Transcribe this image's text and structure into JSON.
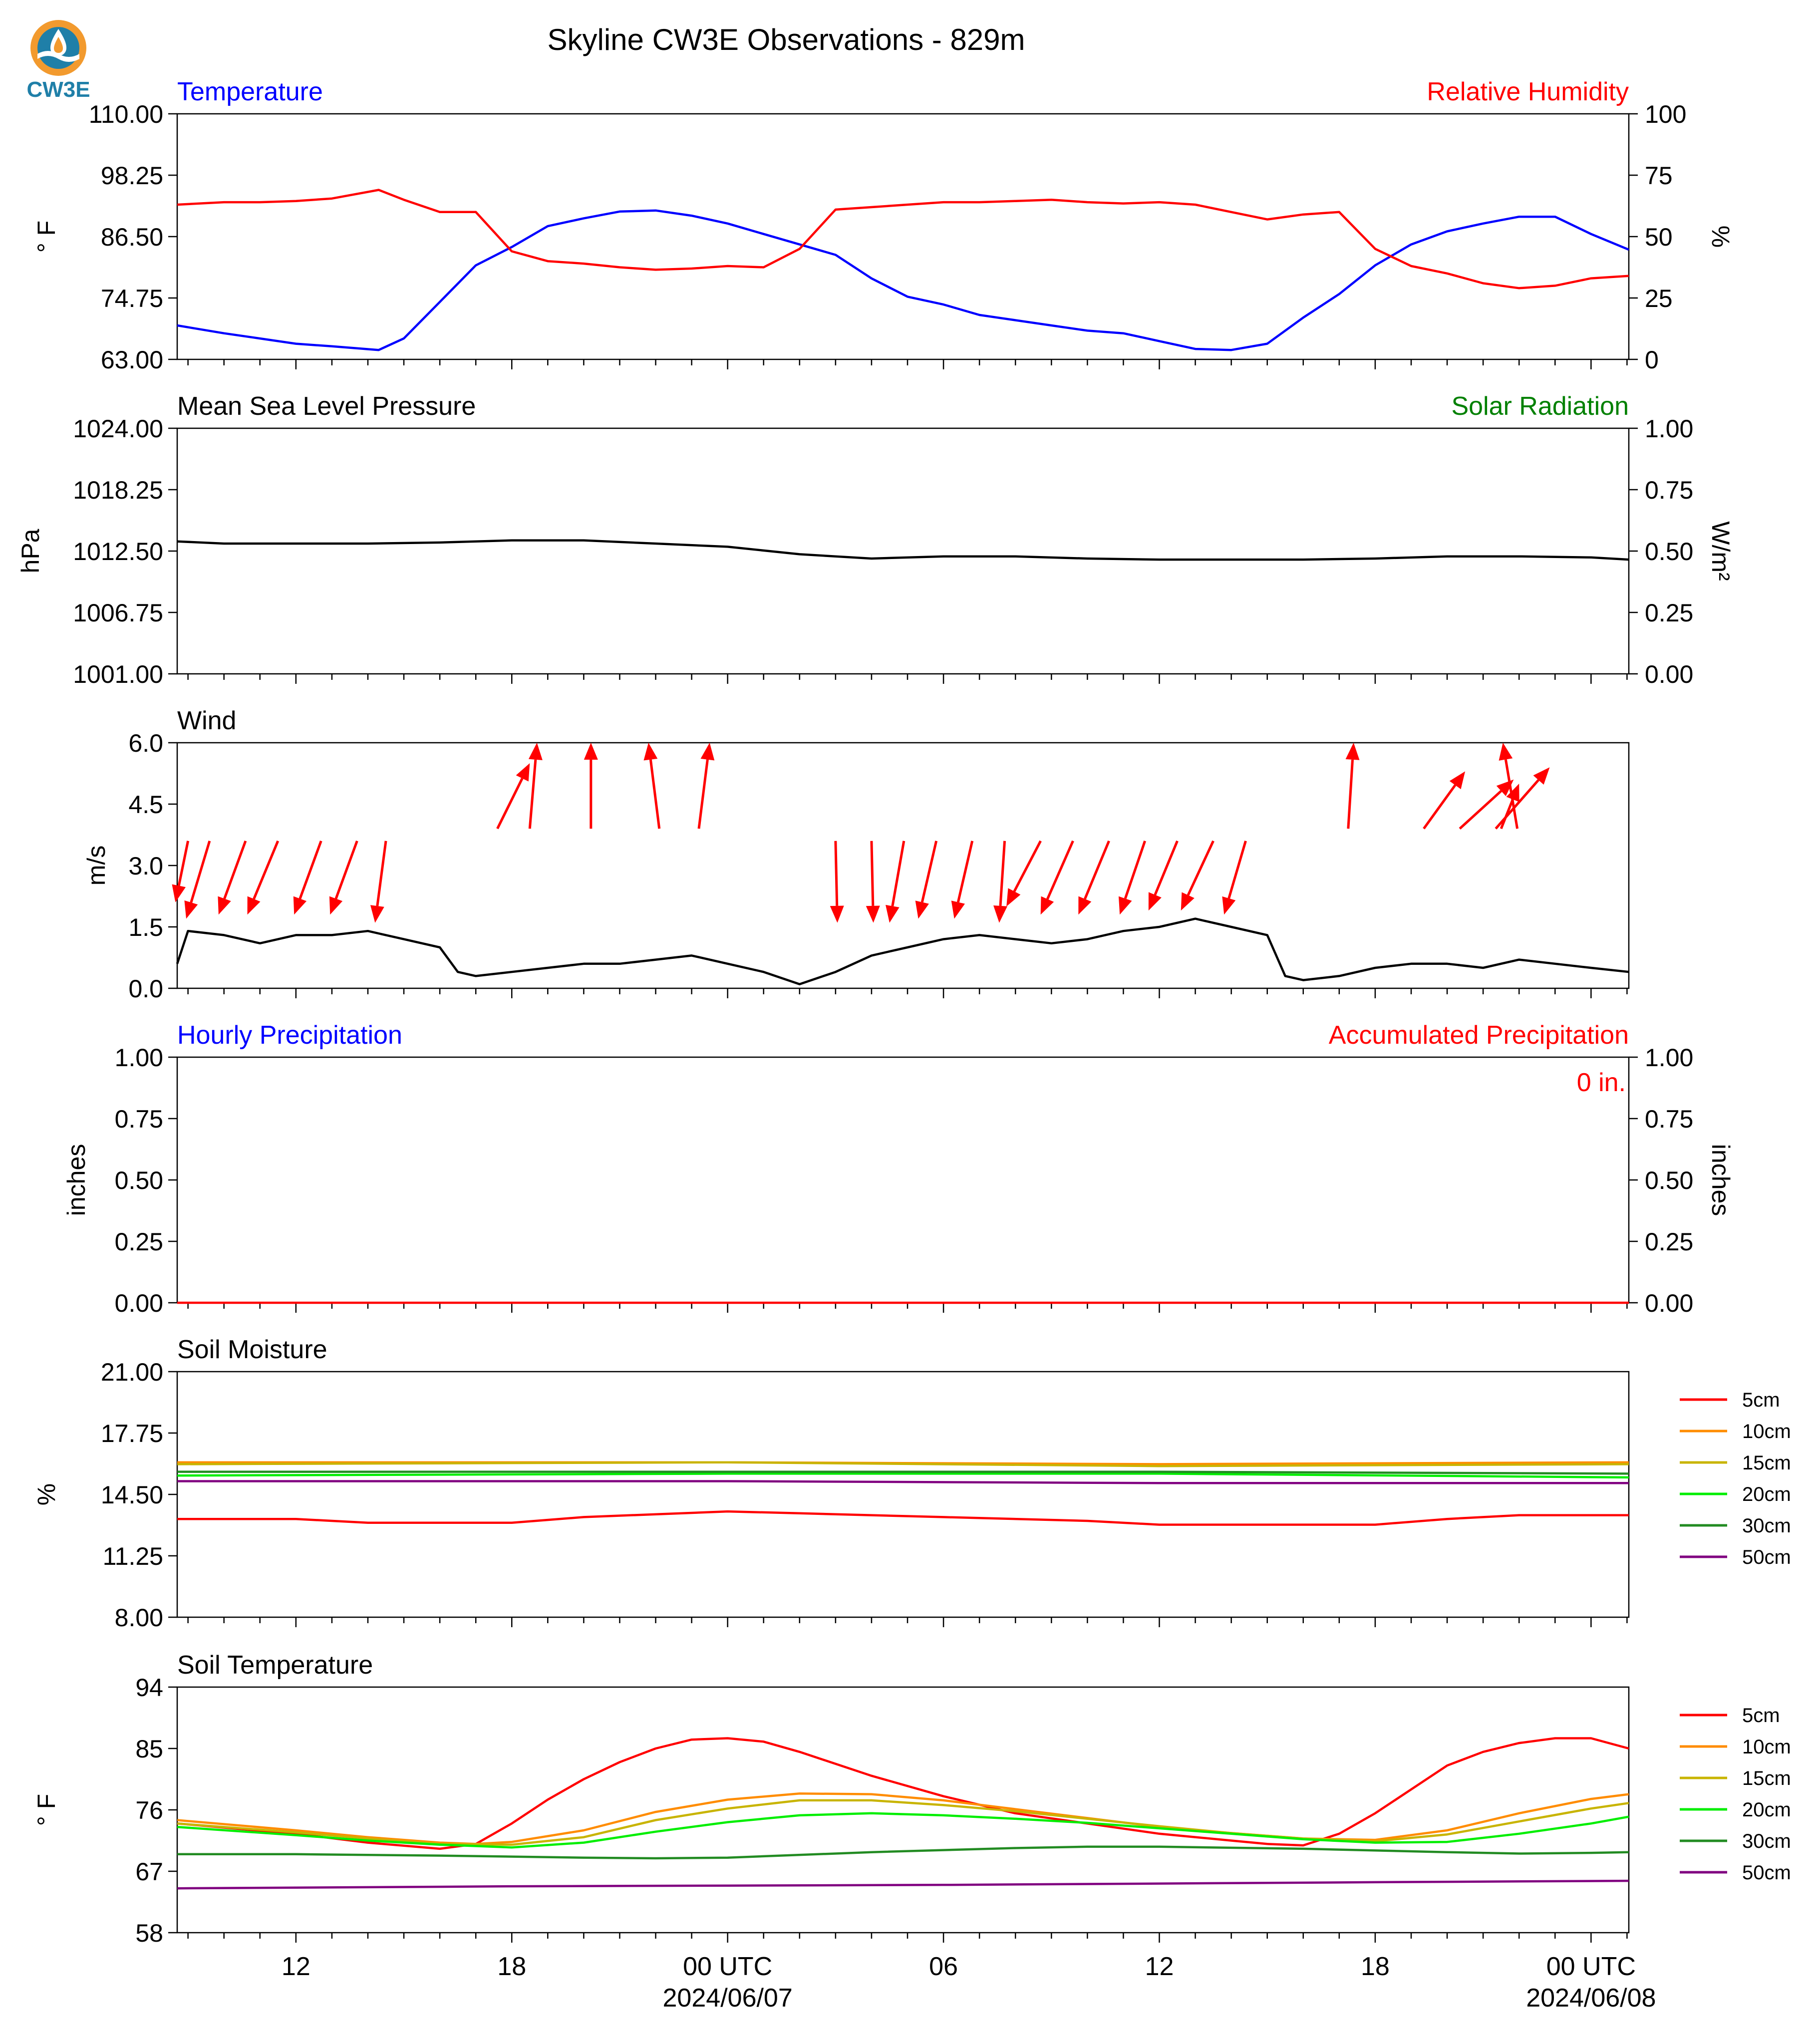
{
  "title": "Skyline CW3E Observations - 829m",
  "logo": {
    "text": "CW3E",
    "icon": "cw3e-logo-icon",
    "colors": {
      "orange": "#f29a2e",
      "blue": "#1f7fa8"
    }
  },
  "colors": {
    "blue": "#0000ff",
    "red": "#ff0000",
    "green": "#008000",
    "black": "#000000"
  },
  "x_axis": {
    "ticks": [
      {
        "label": "12",
        "sub": "",
        "x": 12
      },
      {
        "label": "18",
        "sub": "",
        "x": 18
      },
      {
        "label": "00 UTC",
        "sub": "2024/06/07",
        "x": 24
      },
      {
        "label": "06",
        "sub": "",
        "x": 30
      },
      {
        "label": "12",
        "sub": "",
        "x": 36
      },
      {
        "label": "18",
        "sub": "",
        "x": 42
      },
      {
        "label": "00 UTC",
        "sub": "2024/06/08",
        "x": 48
      }
    ],
    "range_hours": [
      8.7,
      49.05
    ]
  },
  "chart_data": [
    {
      "type": "line",
      "left_title": "Temperature",
      "right_title": "Relative Humidity",
      "ylabel": "° F",
      "y2label": "%",
      "yticks": [
        "63.00",
        "74.75",
        "86.50",
        "98.25",
        "110.00"
      ],
      "y2ticks": [
        "0",
        "25",
        "50",
        "75",
        "100"
      ],
      "ylim": [
        63,
        110
      ],
      "y2lim": [
        0,
        100
      ],
      "series": [
        {
          "axis": "left",
          "color": "#0000ff",
          "x": [
            8.7,
            10,
            11,
            12,
            13,
            14.3,
            15,
            16,
            17,
            18,
            19,
            20,
            21,
            22,
            23,
            24,
            25,
            26,
            27,
            28,
            29,
            30,
            31,
            32,
            33,
            34,
            35,
            36,
            37,
            38,
            39,
            40,
            41,
            42,
            43,
            44,
            45,
            46,
            47,
            48,
            49.05
          ],
          "values": [
            69.5,
            68,
            67,
            66,
            65.5,
            64.8,
            67,
            74,
            81,
            84.5,
            88.5,
            90,
            91.3,
            91.5,
            90.5,
            89,
            87,
            85,
            83,
            78.5,
            75,
            73.5,
            71.5,
            70.5,
            69.5,
            68.5,
            68,
            66.5,
            65,
            64.8,
            66,
            71,
            75.5,
            81,
            85,
            87.5,
            89,
            90.3,
            90.3,
            87,
            84
          ]
        },
        {
          "axis": "right",
          "color": "#ff0000",
          "x": [
            8.7,
            10,
            11,
            12,
            13,
            14.3,
            15,
            16,
            17,
            18,
            19,
            20,
            21,
            22,
            23,
            24,
            25,
            26,
            27,
            28,
            29,
            30,
            31,
            32,
            33,
            34,
            35,
            36,
            37,
            38,
            39,
            40,
            41,
            42,
            43,
            44,
            45,
            46,
            47,
            48,
            49.05
          ],
          "values": [
            63,
            64,
            64,
            64.5,
            65.5,
            69,
            65,
            60,
            60,
            44,
            40,
            39,
            37.5,
            36.5,
            37,
            38,
            37.5,
            45,
            61,
            62,
            63,
            64,
            64,
            64.5,
            65,
            64,
            63.5,
            64,
            63,
            60,
            57,
            59,
            60,
            45,
            38,
            35,
            31,
            29,
            30,
            33,
            34
          ]
        }
      ]
    },
    {
      "type": "line",
      "left_title": "Mean Sea Level Pressure",
      "right_title": "Solar Radiation",
      "ylabel": "hPa",
      "y2label": "W/m²",
      "yticks": [
        "1001.00",
        "1006.75",
        "1012.50",
        "1018.25",
        "1024.00"
      ],
      "y2ticks": [
        "0.00",
        "0.25",
        "0.50",
        "0.75",
        "1.00"
      ],
      "ylim": [
        1001,
        1024
      ],
      "y2lim": [
        0,
        1
      ],
      "series": [
        {
          "axis": "left",
          "color": "#000000",
          "x": [
            8.7,
            10,
            12,
            14,
            16,
            18,
            20,
            22,
            24,
            26,
            28,
            30,
            32,
            34,
            36,
            38,
            40,
            42,
            44,
            46,
            48,
            49.05
          ],
          "values": [
            1013.4,
            1013.2,
            1013.2,
            1013.2,
            1013.3,
            1013.5,
            1013.5,
            1013.2,
            1012.9,
            1012.2,
            1011.8,
            1012.0,
            1012.0,
            1011.8,
            1011.7,
            1011.7,
            1011.7,
            1011.8,
            1012.0,
            1012.0,
            1011.9,
            1011.7
          ]
        }
      ]
    },
    {
      "type": "line",
      "left_title": "Wind",
      "ylabel": "m/s",
      "yticks": [
        "0.0",
        "1.5",
        "3.0",
        "4.5",
        "6.0"
      ],
      "ylim": [
        0,
        6
      ],
      "series": [
        {
          "axis": "left",
          "color": "#000000",
          "x": [
            8.7,
            9,
            10,
            11,
            12,
            13,
            14,
            15,
            16,
            16.5,
            17,
            18,
            19,
            20,
            21,
            22,
            23,
            24,
            25,
            26,
            27,
            28,
            29,
            30,
            31,
            32,
            33,
            34,
            35,
            36,
            37,
            38,
            39,
            39.5,
            40,
            41,
            42,
            43,
            44,
            45,
            46,
            47,
            48,
            49.05
          ],
          "values": [
            0.6,
            1.4,
            1.3,
            1.1,
            1.3,
            1.3,
            1.4,
            1.2,
            1.0,
            0.4,
            0.3,
            0.4,
            0.5,
            0.6,
            0.6,
            0.7,
            0.8,
            0.6,
            0.4,
            0.1,
            0.4,
            0.8,
            1.0,
            1.2,
            1.3,
            1.2,
            1.1,
            1.2,
            1.4,
            1.5,
            1.7,
            1.5,
            1.3,
            0.3,
            0.2,
            0.3,
            0.5,
            0.6,
            0.6,
            0.5,
            0.7,
            0.6,
            0.5,
            0.4
          ]
        }
      ],
      "wind_arrows": [
        {
          "x": 9.0,
          "x_tip": 8.65,
          "y": 3.6,
          "y_tip": 2.1
        },
        {
          "x": 9.6,
          "x_tip": 8.95,
          "y": 3.6,
          "y_tip": 1.7
        },
        {
          "x": 10.6,
          "x_tip": 9.85,
          "y": 3.6,
          "y_tip": 1.8
        },
        {
          "x": 11.5,
          "x_tip": 10.65,
          "y": 3.6,
          "y_tip": 1.8
        },
        {
          "x": 12.7,
          "x_tip": 11.95,
          "y": 3.6,
          "y_tip": 1.8
        },
        {
          "x": 13.7,
          "x_tip": 12.95,
          "y": 3.6,
          "y_tip": 1.8
        },
        {
          "x": 14.5,
          "x_tip": 14.2,
          "y": 3.6,
          "y_tip": 1.6
        },
        {
          "x": 17.6,
          "x_tip": 18.5,
          "y": 3.9,
          "y_tip": 5.5
        },
        {
          "x": 18.5,
          "x_tip": 18.7,
          "y": 3.9,
          "y_tip": 6.0
        },
        {
          "x": 20.2,
          "x_tip": 20.2,
          "y": 3.9,
          "y_tip": 6.0
        },
        {
          "x": 22.1,
          "x_tip": 21.8,
          "y": 3.9,
          "y_tip": 6.0
        },
        {
          "x": 23.2,
          "x_tip": 23.5,
          "y": 3.9,
          "y_tip": 6.0
        },
        {
          "x": 27.0,
          "x_tip": 27.05,
          "y": 3.6,
          "y_tip": 1.6
        },
        {
          "x": 28.0,
          "x_tip": 28.05,
          "y": 3.6,
          "y_tip": 1.6
        },
        {
          "x": 28.9,
          "x_tip": 28.5,
          "y": 3.6,
          "y_tip": 1.6
        },
        {
          "x": 29.8,
          "x_tip": 29.3,
          "y": 3.6,
          "y_tip": 1.7
        },
        {
          "x": 30.8,
          "x_tip": 30.3,
          "y": 3.6,
          "y_tip": 1.7
        },
        {
          "x": 31.7,
          "x_tip": 31.55,
          "y": 3.6,
          "y_tip": 1.6
        },
        {
          "x": 32.7,
          "x_tip": 31.75,
          "y": 3.6,
          "y_tip": 2.0
        },
        {
          "x": 33.6,
          "x_tip": 32.7,
          "y": 3.6,
          "y_tip": 1.8
        },
        {
          "x": 34.6,
          "x_tip": 33.75,
          "y": 3.6,
          "y_tip": 1.8
        },
        {
          "x": 35.6,
          "x_tip": 34.9,
          "y": 3.6,
          "y_tip": 1.8
        },
        {
          "x": 36.5,
          "x_tip": 35.7,
          "y": 3.6,
          "y_tip": 1.9
        },
        {
          "x": 37.5,
          "x_tip": 36.6,
          "y": 3.6,
          "y_tip": 1.9
        },
        {
          "x": 38.4,
          "x_tip": 37.8,
          "y": 3.6,
          "y_tip": 1.8
        },
        {
          "x": 41.25,
          "x_tip": 41.4,
          "y": 3.9,
          "y_tip": 6.0
        },
        {
          "x": 43.35,
          "x_tip": 44.5,
          "y": 3.9,
          "y_tip": 5.3
        },
        {
          "x": 44.35,
          "x_tip": 45.85,
          "y": 3.9,
          "y_tip": 5.1
        },
        {
          "x": 45.35,
          "x_tip": 46.85,
          "y": 3.9,
          "y_tip": 5.4
        },
        {
          "x": 45.95,
          "x_tip": 45.55,
          "y": 3.9,
          "y_tip": 6.0
        },
        {
          "x": 45.5,
          "x_tip": 46.0,
          "y": 3.9,
          "y_tip": 5.0
        }
      ]
    },
    {
      "type": "line",
      "left_title": "Hourly Precipitation",
      "right_title": "Accumulated Precipitation",
      "ylabel": "inches",
      "y2label": "inches",
      "annotation": "0 in.",
      "yticks": [
        "0.00",
        "0.25",
        "0.50",
        "0.75",
        "1.00"
      ],
      "y2ticks": [
        "0.00",
        "0.25",
        "0.50",
        "0.75",
        "1.00"
      ],
      "ylim": [
        0,
        1
      ],
      "y2lim": [
        0,
        1
      ],
      "series": [
        {
          "axis": "right",
          "color": "#ff0000",
          "x": [
            8.7,
            49.05
          ],
          "values": [
            0,
            0
          ]
        }
      ]
    },
    {
      "type": "line",
      "left_title": "Soil Moisture",
      "ylabel": "%",
      "yticks": [
        "8.00",
        "11.25",
        "14.50",
        "17.75",
        "21.00"
      ],
      "ylim": [
        8,
        21
      ],
      "legend": [
        "5cm",
        "10cm",
        "15cm",
        "20cm",
        "30cm",
        "50cm"
      ],
      "series": [
        {
          "name": "5cm",
          "color": "#ff0000",
          "x": [
            8.7,
            12,
            14,
            18,
            20,
            24,
            26,
            30,
            34,
            36,
            40,
            42,
            44,
            46,
            49.05
          ],
          "values": [
            13.2,
            13.2,
            13.0,
            13.0,
            13.3,
            13.6,
            13.5,
            13.3,
            13.1,
            12.9,
            12.9,
            12.9,
            13.2,
            13.4,
            13.4
          ]
        },
        {
          "name": "10cm",
          "color": "#ff8c00",
          "x": [
            8.7,
            24,
            36,
            49.05
          ],
          "values": [
            16.2,
            16.2,
            16.1,
            16.2
          ]
        },
        {
          "name": "15cm",
          "color": "#c8b400",
          "x": [
            8.7,
            24,
            36,
            49.05
          ],
          "values": [
            16.1,
            16.2,
            16.0,
            16.1
          ]
        },
        {
          "name": "20cm",
          "color": "#00ee00",
          "x": [
            8.7,
            24,
            36,
            49.05
          ],
          "values": [
            15.5,
            15.6,
            15.6,
            15.4
          ]
        },
        {
          "name": "30cm",
          "color": "#228b22",
          "x": [
            8.7,
            24,
            36,
            49.05
          ],
          "values": [
            15.7,
            15.7,
            15.7,
            15.6
          ]
        },
        {
          "name": "50cm",
          "color": "#800080",
          "x": [
            8.7,
            24,
            36,
            49.05
          ],
          "values": [
            15.2,
            15.2,
            15.1,
            15.1
          ]
        }
      ]
    },
    {
      "type": "line",
      "left_title": "Soil Temperature",
      "ylabel": "° F",
      "yticks": [
        "58",
        "67",
        "76",
        "85",
        "94"
      ],
      "ylim": [
        58,
        94
      ],
      "legend": [
        "5cm",
        "10cm",
        "15cm",
        "20cm",
        "30cm",
        "50cm"
      ],
      "series": [
        {
          "name": "5cm",
          "color": "#ff0000",
          "x": [
            8.7,
            12,
            14,
            16,
            17,
            18,
            19,
            20,
            21,
            22,
            23,
            24,
            25,
            26,
            28,
            30,
            32,
            34,
            36,
            38,
            39,
            40,
            41,
            42,
            43,
            44,
            45,
            46,
            47,
            48,
            49.05
          ],
          "values": [
            74,
            72.5,
            71.2,
            70.3,
            71,
            74,
            77.5,
            80.5,
            83,
            85,
            86.3,
            86.5,
            86,
            84.5,
            81,
            78,
            75.5,
            74,
            72.5,
            71.5,
            71,
            70.8,
            72.5,
            75.5,
            79,
            82.5,
            84.5,
            85.8,
            86.5,
            86.5,
            85
          ]
        },
        {
          "name": "10cm",
          "color": "#ff8c00",
          "x": [
            8.7,
            12,
            14,
            16,
            17,
            18,
            20,
            22,
            24,
            26,
            28,
            30,
            32,
            34,
            36,
            38,
            40,
            42,
            44,
            46,
            48,
            49.05
          ],
          "values": [
            74.5,
            73,
            72,
            71.2,
            71,
            71.3,
            73,
            75.7,
            77.5,
            78.4,
            78.3,
            77.4,
            76.1,
            74.8,
            73.5,
            72.6,
            71.8,
            71.6,
            73,
            75.5,
            77.6,
            78.3
          ]
        },
        {
          "name": "15cm",
          "color": "#c8b400",
          "x": [
            8.7,
            12,
            14,
            16,
            18,
            20,
            22,
            24,
            26,
            28,
            30,
            32,
            34,
            36,
            38,
            40,
            42,
            44,
            46,
            48,
            49.05
          ],
          "values": [
            74,
            72.7,
            71.8,
            71,
            70.9,
            72,
            74.5,
            76.2,
            77.4,
            77.4,
            76.7,
            75.8,
            74.7,
            73.6,
            72.6,
            71.8,
            71.4,
            72.4,
            74.3,
            76.2,
            77
          ]
        },
        {
          "name": "20cm",
          "color": "#00ee00",
          "x": [
            8.7,
            12,
            14,
            16,
            18,
            20,
            22,
            24,
            26,
            28,
            30,
            32,
            34,
            36,
            38,
            40,
            42,
            44,
            46,
            48,
            49.05
          ],
          "values": [
            73.5,
            72.3,
            71.5,
            70.9,
            70.5,
            71.2,
            72.8,
            74.2,
            75.2,
            75.5,
            75.2,
            74.7,
            74.1,
            73.3,
            72.5,
            71.7,
            71.2,
            71.3,
            72.5,
            74,
            75
          ]
        },
        {
          "name": "30cm",
          "color": "#228b22",
          "x": [
            8.7,
            12,
            16,
            20,
            22,
            24,
            28,
            32,
            34,
            36,
            40,
            44,
            46,
            48,
            49.05
          ],
          "values": [
            69.5,
            69.5,
            69.3,
            69.0,
            68.9,
            69.0,
            69.8,
            70.4,
            70.6,
            70.6,
            70.3,
            69.8,
            69.6,
            69.7,
            69.8
          ]
        },
        {
          "name": "50cm",
          "color": "#800080",
          "x": [
            8.7,
            12,
            18,
            24,
            30,
            36,
            42,
            49.05
          ],
          "values": [
            64.5,
            64.6,
            64.8,
            64.9,
            65.0,
            65.2,
            65.4,
            65.6
          ]
        }
      ]
    }
  ]
}
